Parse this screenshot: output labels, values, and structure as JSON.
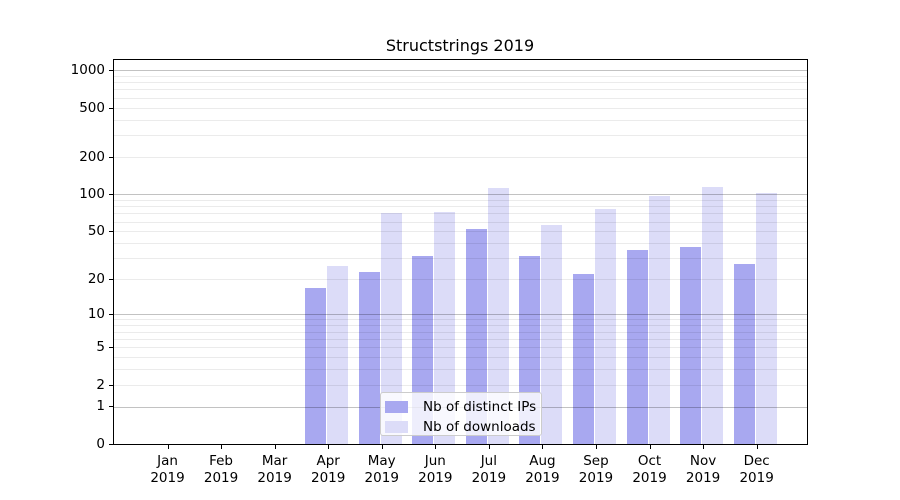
{
  "title": "Structstrings 2019",
  "legend": {
    "items": [
      {
        "label": "Nb of distinct IPs",
        "color": "#a8a8f0"
      },
      {
        "label": "Nb of downloads",
        "color": "#dcdcf8"
      }
    ]
  },
  "chart_data": {
    "type": "bar",
    "title": "Structstrings 2019",
    "categories": [
      "Jan",
      "Feb",
      "Mar",
      "Apr",
      "May",
      "Jun",
      "Jul",
      "Aug",
      "Sep",
      "Oct",
      "Nov",
      "Dec"
    ],
    "year_suffix": "2019",
    "series": [
      {
        "name": "Nb of distinct IPs",
        "color": "#a8a8f0",
        "values": [
          0,
          0,
          0,
          17,
          23,
          31,
          52,
          31,
          22,
          35,
          37,
          27
        ]
      },
      {
        "name": "Nb of downloads",
        "color": "#dcdcf8",
        "values": [
          0,
          0,
          0,
          26,
          70,
          72,
          112,
          56,
          76,
          96,
          115,
          102
        ]
      }
    ],
    "yscale": "log10(1+y)",
    "yticks": [
      0,
      1,
      2,
      5,
      10,
      20,
      50,
      100,
      200,
      500,
      1000
    ],
    "ylim": [
      0,
      1206
    ],
    "gridlines_major": [
      1,
      10,
      100,
      1000
    ],
    "gridlines_minor": [
      2,
      3,
      4,
      5,
      6,
      7,
      8,
      9,
      20,
      30,
      40,
      50,
      60,
      70,
      80,
      90,
      200,
      300,
      400,
      500,
      600,
      700,
      800,
      900
    ],
    "grid": true,
    "legend_position": "lower-center",
    "xlabel": "",
    "ylabel": ""
  }
}
